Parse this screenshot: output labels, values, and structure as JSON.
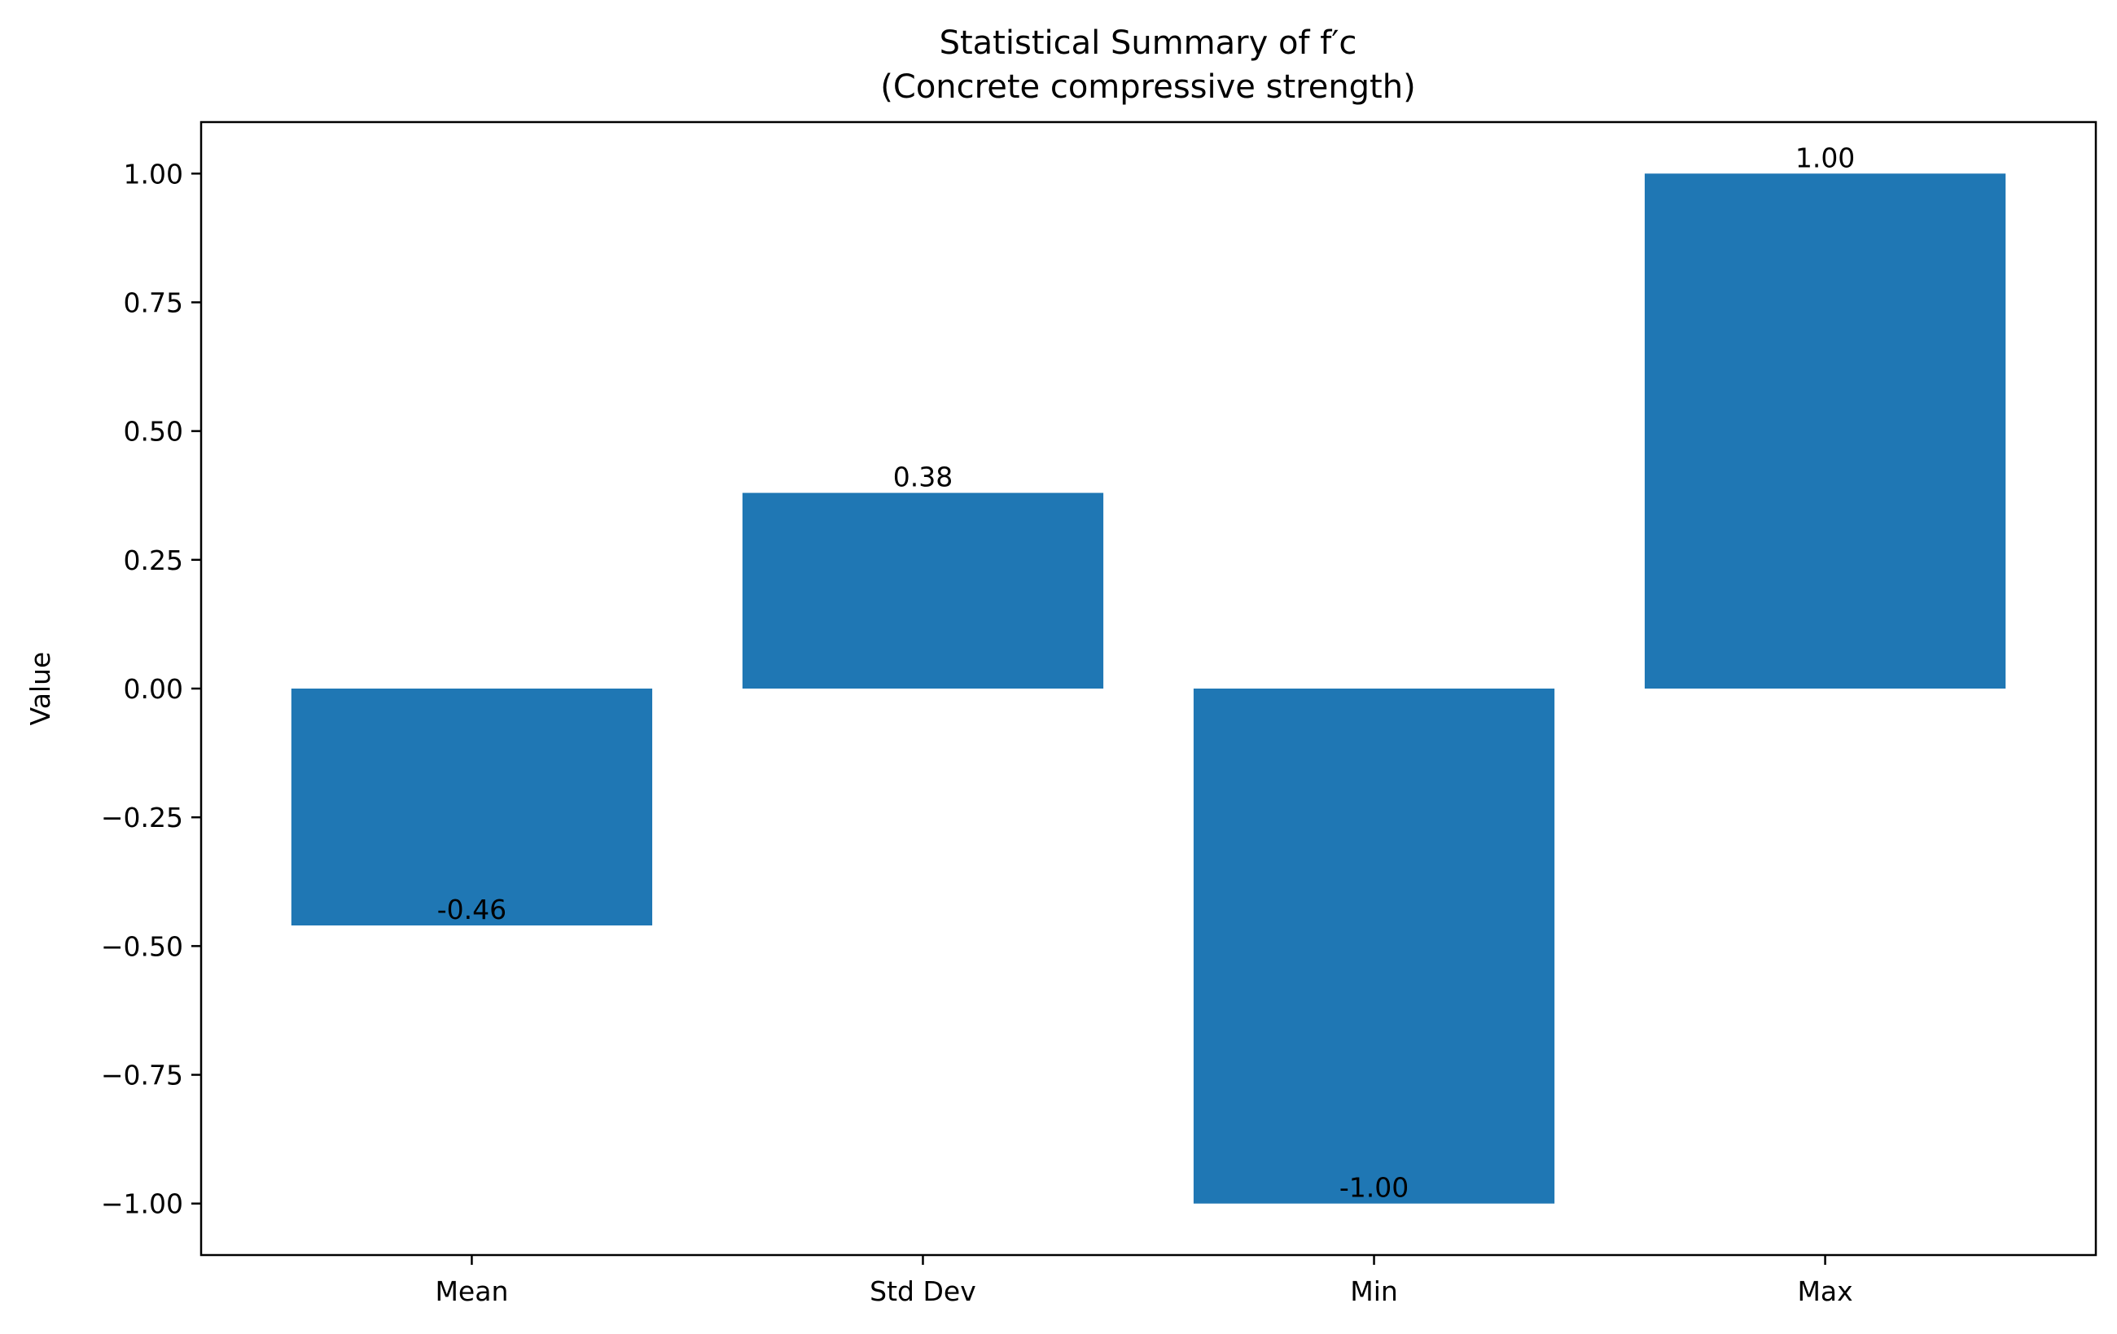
{
  "chart_data": {
    "type": "bar",
    "title": "Statistical Summary of f′c",
    "subtitle": "(Concrete compressive strength)",
    "xlabel": "",
    "ylabel": "Value",
    "categories": [
      "Mean",
      "Std Dev",
      "Min",
      "Max"
    ],
    "values": [
      -0.46,
      0.38,
      -1.0,
      1.0
    ],
    "value_labels": [
      "-0.46",
      "0.38",
      "-1.00",
      "1.00"
    ],
    "ylim": [
      -1.1,
      1.1
    ],
    "yticks": [
      1.0,
      0.75,
      0.5,
      0.25,
      0.0,
      -0.25,
      -0.5,
      -0.75,
      -1.0
    ],
    "ytick_labels": [
      "1.00",
      "0.75",
      "0.50",
      "0.25",
      "0.00",
      "−0.25",
      "−0.50",
      "−0.75",
      "−1.00"
    ],
    "bar_color": "#1f77b4",
    "grid": false,
    "legend": "none"
  }
}
